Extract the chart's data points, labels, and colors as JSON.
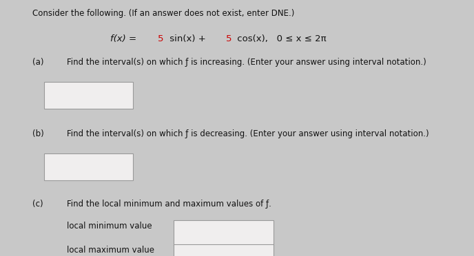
{
  "bg_color": "#c8c8c8",
  "panel_color": "#e0dede",
  "box_color": "#f0eeee",
  "header_text": "Consider the following. (If an answer does not exist, enter DNE.)",
  "part_a_label": "(a)   ",
  "part_a_text": "Find the interval(s) on which ƒ is increasing. (Enter your answer using interval notation.)",
  "part_b_label": "(b)   ",
  "part_b_text": "Find the interval(s) on which ƒ is decreasing. (Enter your answer using interval notation.)",
  "part_c_label": "(c)   ",
  "part_c_text": "Find the local minimum and maximum values of ƒ.",
  "local_min_label": "local minimum value",
  "local_max_label": "local maximum value",
  "func_prefix": "f(x) = ",
  "func_5a": "5",
  "func_sin": " sin(x) + ",
  "func_5b": "5",
  "func_cos": " cos(x),   0 ≤ x ≤ 2π",
  "fs": 8.5,
  "fs_func": 9.5
}
